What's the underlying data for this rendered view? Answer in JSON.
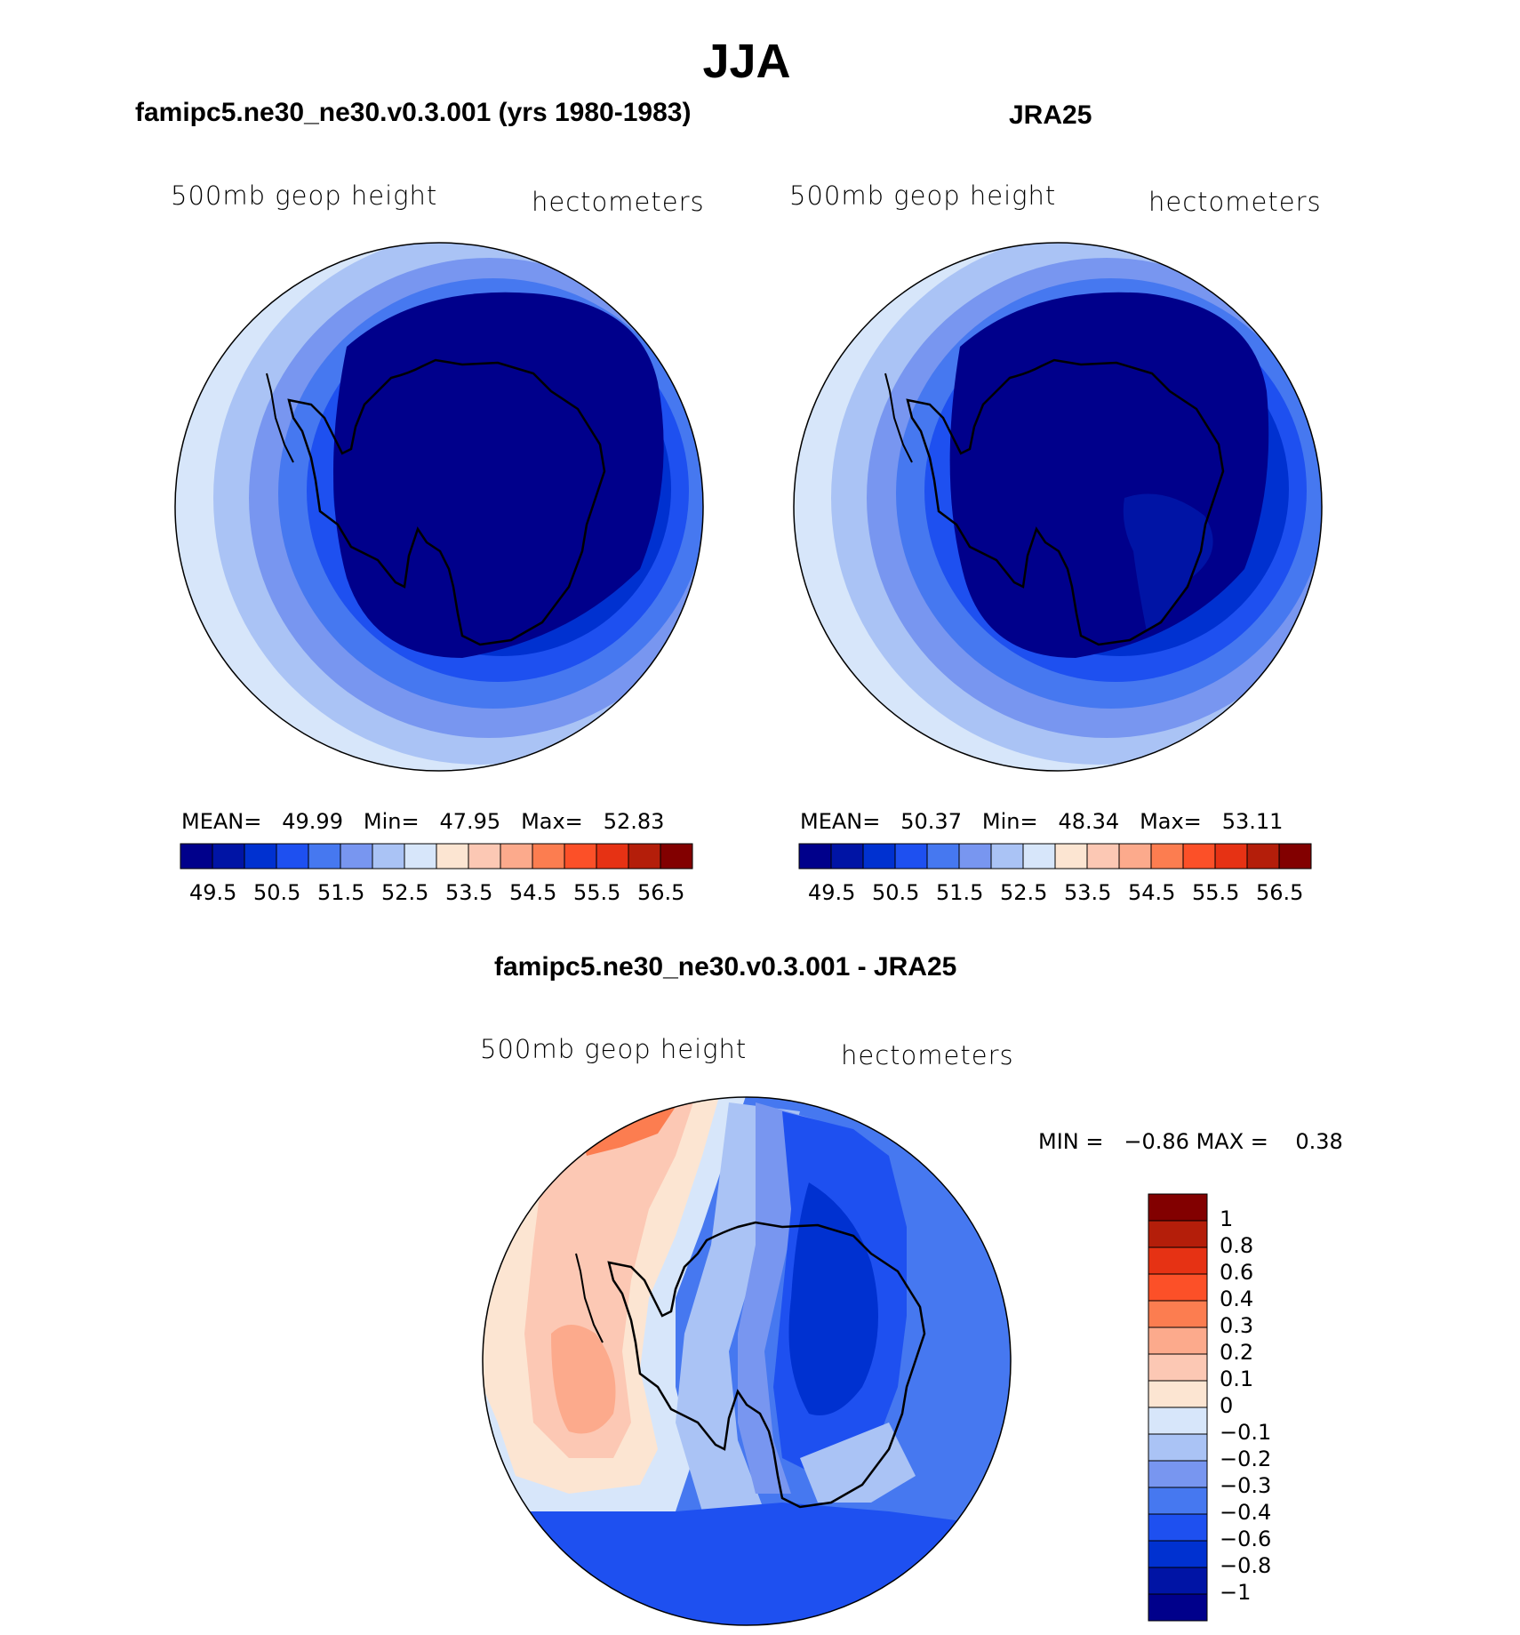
{
  "title": "JJA",
  "panels": [
    {
      "title": "famipc5.ne30_ne30.v0.3.001 (yrs 1980-1983)",
      "left_label": "500mb  geop  height",
      "right_label": "hectometers",
      "stats": {
        "mean_label": "MEAN=",
        "mean": "49.99",
        "min_label": "Min=",
        "min": "47.95",
        "max_label": "Max=",
        "max": "52.83"
      },
      "colorbar_ticks": [
        "49.5",
        "50.5",
        "51.5",
        "52.5",
        "53.5",
        "54.5",
        "55.5",
        "56.5"
      ]
    },
    {
      "title": "JRA25",
      "left_label": "500mb  geop  height",
      "right_label": "hectometers",
      "stats": {
        "mean_label": "MEAN=",
        "mean": "50.37",
        "min_label": "Min=",
        "min": "48.34",
        "max_label": "Max=",
        "max": "53.11"
      },
      "colorbar_ticks": [
        "49.5",
        "50.5",
        "51.5",
        "52.5",
        "53.5",
        "54.5",
        "55.5",
        "56.5"
      ]
    },
    {
      "title": "famipc5.ne30_ne30.v0.3.001 - JRA25",
      "left_label": "500mb  geop  height",
      "right_label": "hectometers",
      "stats": {
        "min_label": "MIN =",
        "min": "−0.86",
        "max_label": "MAX =",
        "max": "0.38"
      },
      "colorbar_ticks": [
        "1",
        "0.8",
        "0.6",
        "0.4",
        "0.3",
        "0.2",
        "0.1",
        "0",
        "−0.1",
        "−0.2",
        "−0.3",
        "−0.4",
        "−0.6",
        "−0.8",
        "−1"
      ]
    }
  ],
  "colors": {
    "levels16": [
      "#00008b",
      "#0014a5",
      "#0031d0",
      "#1e50f0",
      "#4678f0",
      "#7896f0",
      "#aac3f5",
      "#d7e6fa",
      "#fce5d2",
      "#fcc8b4",
      "#fcaa8c",
      "#fc7d50",
      "#fc5028",
      "#e63214",
      "#b41e0a",
      "#820000"
    ],
    "diff16": [
      "#820000",
      "#b41e0a",
      "#e63214",
      "#fc5028",
      "#fc7d50",
      "#fcaa8c",
      "#fcc8b4",
      "#fce5d2",
      "#d7e6fa",
      "#aac3f5",
      "#7896f0",
      "#4678f0",
      "#1e50f0",
      "#0031d0",
      "#0014a5",
      "#00008b"
    ]
  }
}
